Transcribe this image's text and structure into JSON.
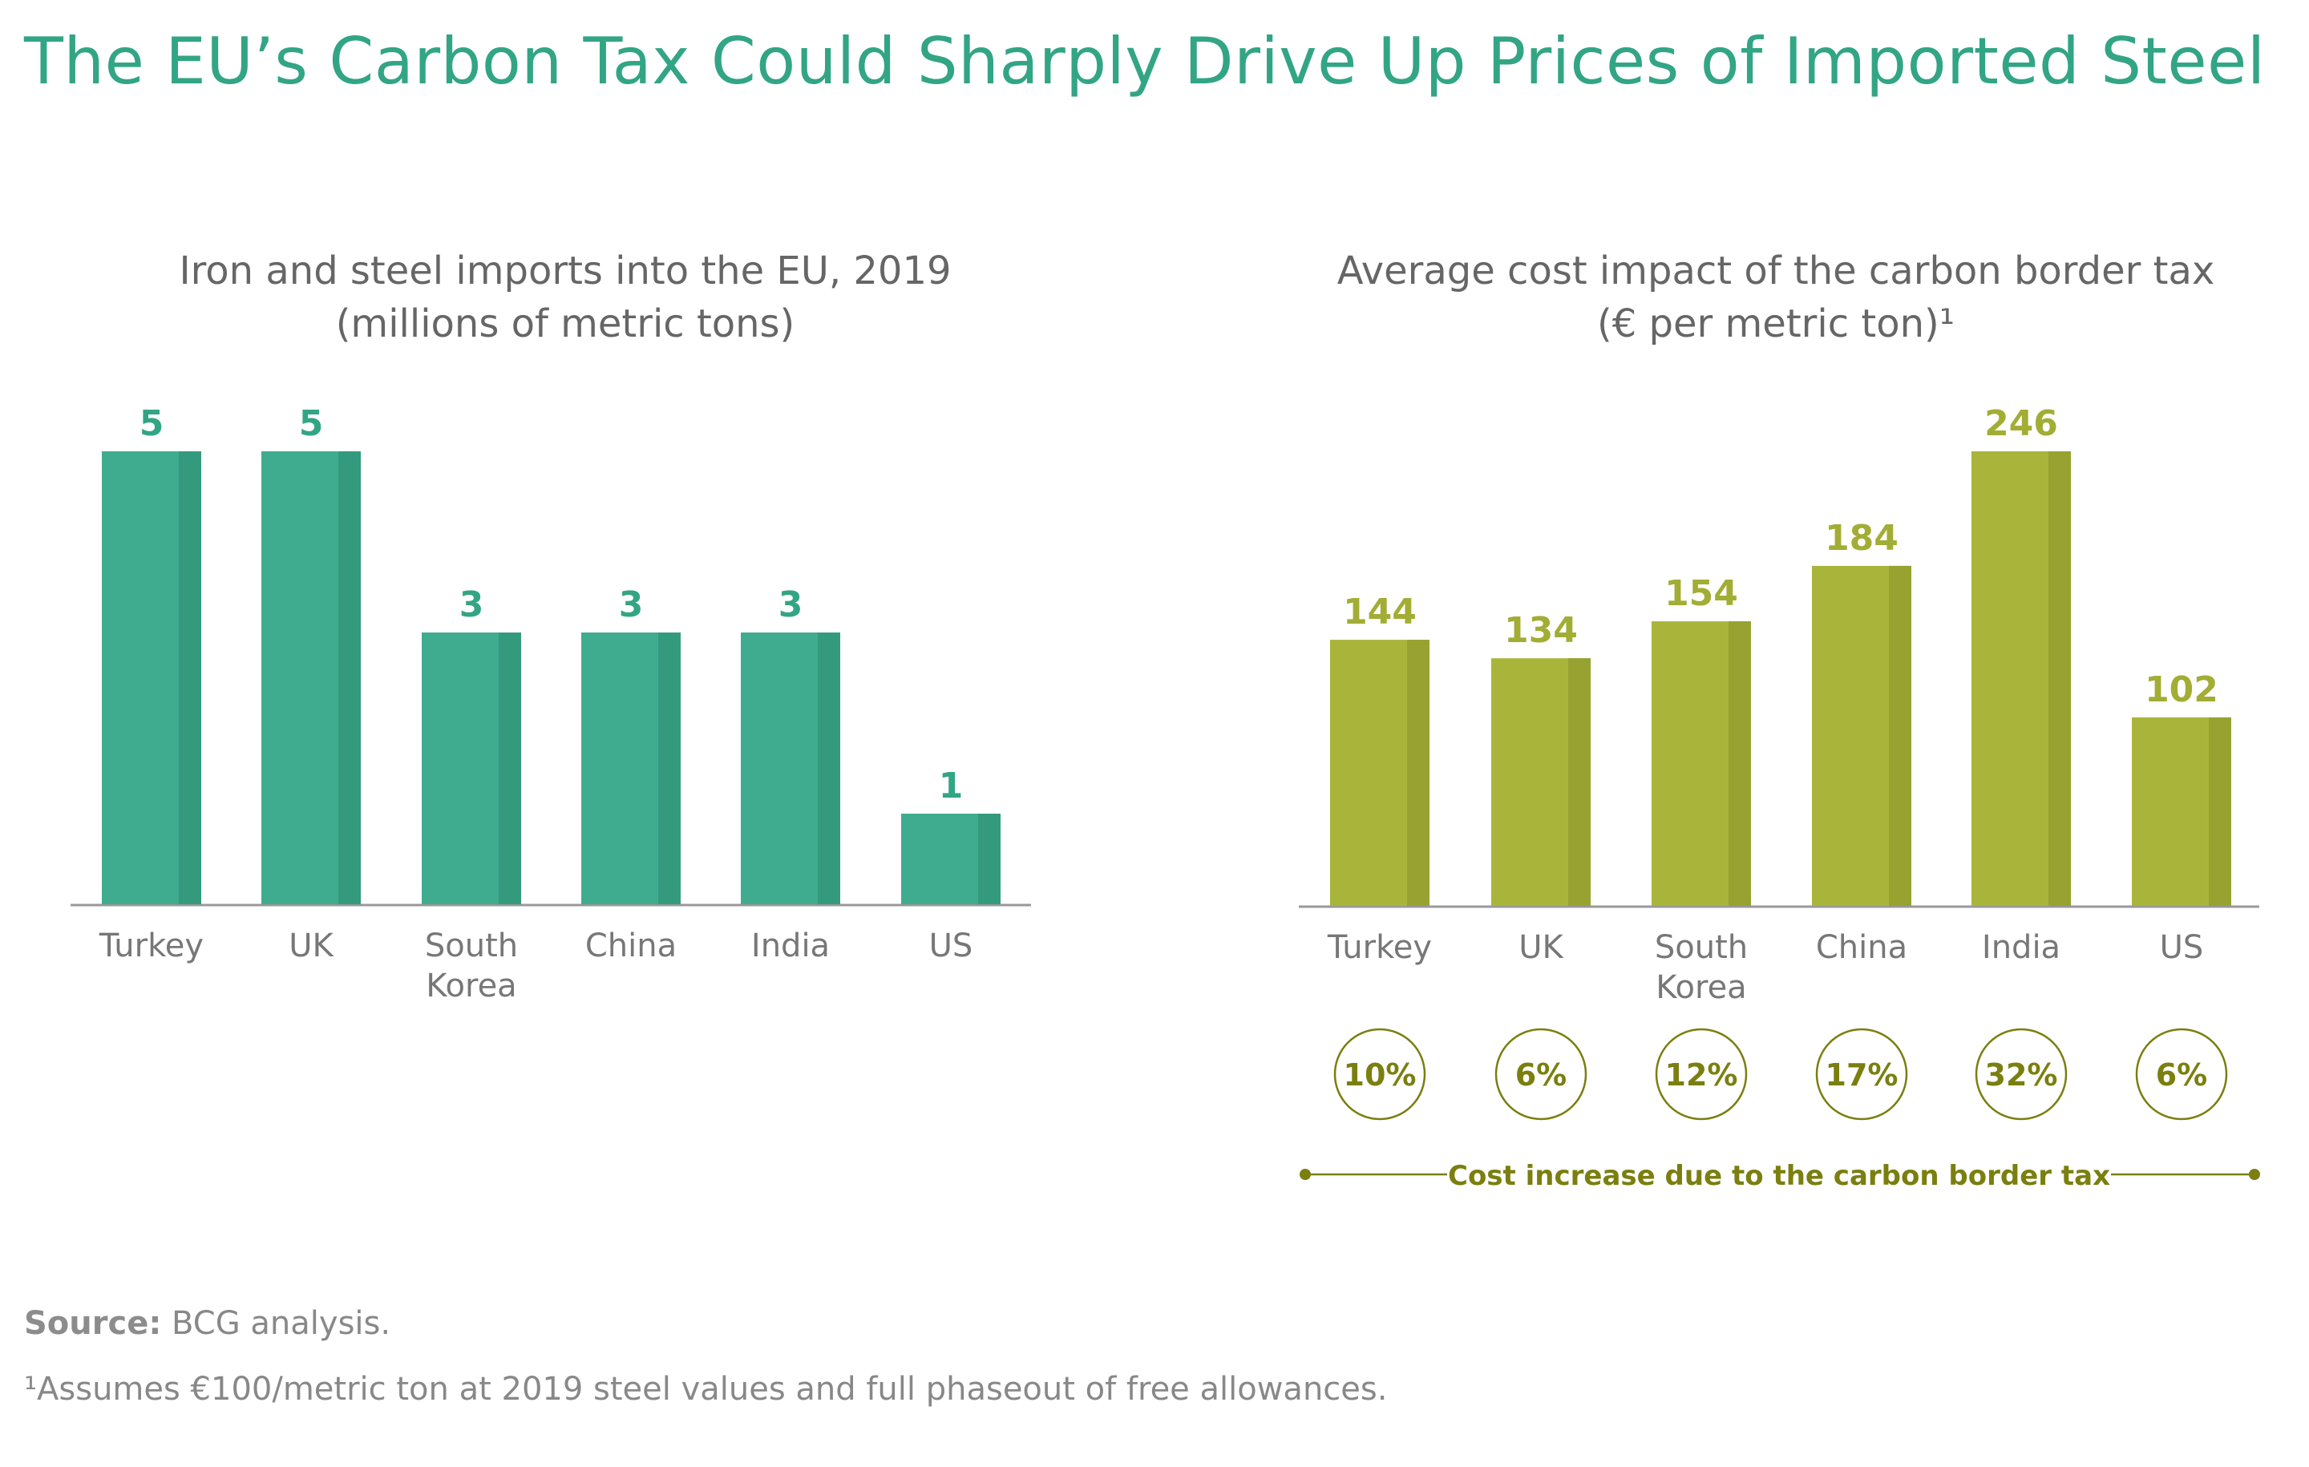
{
  "title": "The EU’s Carbon Tax Could Sharply Drive Up Prices of Imported Steel",
  "colors": {
    "teal": "#3fac8f",
    "teal_shade": "#349a7e",
    "teal_label": "#32a585",
    "olive": "#a9b53a",
    "olive_shade": "#97a231",
    "olive_label": "#a2ad34",
    "olive_dark": "#7a7f0f",
    "axis": "#999999",
    "tick_text": "#777777"
  },
  "chart_data": [
    {
      "type": "bar",
      "title": "Iron and steel imports into the EU, 2019",
      "subtitle": "(millions of metric tons)",
      "categories": [
        [
          "Turkey"
        ],
        [
          "UK"
        ],
        [
          "South",
          "Korea"
        ],
        [
          "China"
        ],
        [
          "India"
        ],
        [
          "US"
        ]
      ],
      "values": [
        5,
        5,
        3,
        3,
        3,
        1
      ],
      "value_labels": [
        "5",
        "5",
        "3",
        "3",
        "3",
        "1"
      ],
      "ylim": [
        0,
        5
      ],
      "xlabel": "",
      "ylabel": ""
    },
    {
      "type": "bar",
      "title": "Average cost impact of the carbon border tax",
      "subtitle": "(€ per metric ton)¹",
      "categories": [
        [
          "Turkey"
        ],
        [
          "UK"
        ],
        [
          "South",
          "Korea"
        ],
        [
          "China"
        ],
        [
          "India"
        ],
        [
          "US"
        ]
      ],
      "values": [
        144,
        134,
        154,
        184,
        246,
        102
      ],
      "value_labels": [
        "144",
        "134",
        "154",
        "184",
        "246",
        "102"
      ],
      "ylim": [
        0,
        246
      ],
      "xlabel": "",
      "ylabel": "",
      "cost_increase": [
        "10%",
        "6%",
        "12%",
        "17%",
        "32%",
        "6%"
      ],
      "cost_increase_label": "Cost increase due to the carbon border tax"
    }
  ],
  "source_label": "Source:",
  "source_text": " BCG analysis.",
  "footnote": "¹Assumes €100/metric ton at 2019 steel values and full phaseout of free allowances."
}
